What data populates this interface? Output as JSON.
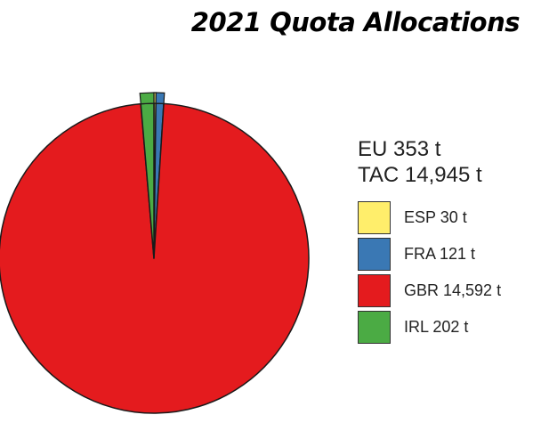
{
  "chart_data": {
    "type": "pie",
    "title": "2021 Quota Allocations",
    "summary_lines": [
      "EU 353 t",
      "TAC 14,945 t"
    ],
    "categories": [
      "ESP",
      "FRA",
      "GBR",
      "IRL"
    ],
    "values": [
      30,
      121,
      14592,
      202
    ],
    "unit": "t",
    "legend": [
      {
        "label": "ESP 30 t",
        "color": "#ffee6b"
      },
      {
        "label": "FRA 121 t",
        "color": "#3a78b4"
      },
      {
        "label": "GBR 14,592 t",
        "color": "#e41b1e"
      },
      {
        "label": "IRL 202 t",
        "color": "#4bab44"
      }
    ],
    "start_angle_deg": 0,
    "direction": "clockwise",
    "legend_position": "right"
  }
}
